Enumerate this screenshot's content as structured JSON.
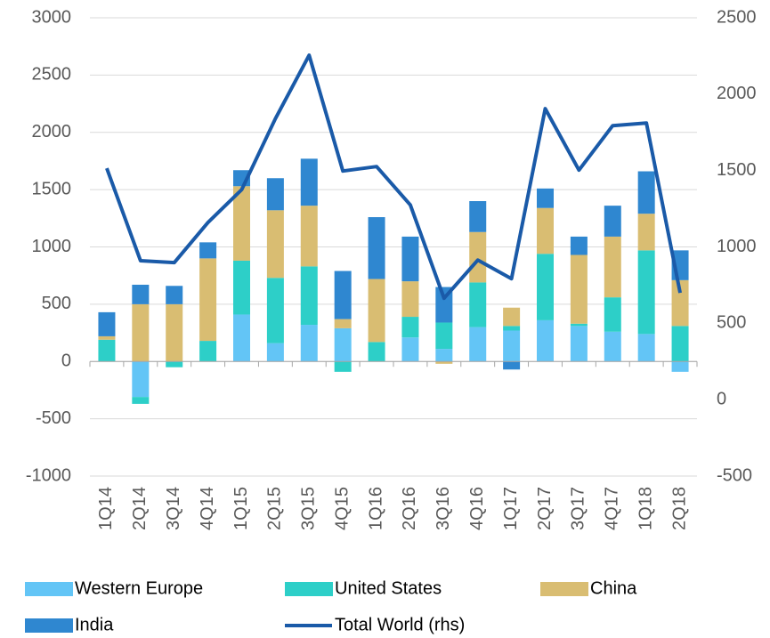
{
  "chart_data": {
    "type": "bar",
    "categories": [
      "1Q14",
      "2Q14",
      "3Q14",
      "4Q14",
      "1Q15",
      "2Q15",
      "3Q15",
      "4Q15",
      "1Q16",
      "2Q16",
      "3Q16",
      "4Q16",
      "1Q17",
      "2Q17",
      "3Q17",
      "4Q17",
      "1Q18",
      "2Q18"
    ],
    "series": [
      {
        "name": "Western Europe",
        "color": "#63c5f6",
        "values": [
          0,
          -310,
          0,
          0,
          410,
          160,
          320,
          290,
          0,
          210,
          110,
          300,
          270,
          360,
          310,
          260,
          240,
          -90
        ]
      },
      {
        "name": "United States",
        "color": "#2dcfc8",
        "values": [
          190,
          -60,
          -50,
          180,
          470,
          570,
          510,
          -90,
          170,
          180,
          230,
          390,
          40,
          580,
          20,
          300,
          730,
          310
        ]
      },
      {
        "name": "China",
        "color": "#d9bd72",
        "values": [
          30,
          500,
          500,
          720,
          650,
          590,
          530,
          80,
          550,
          310,
          -20,
          440,
          160,
          400,
          600,
          530,
          320,
          400
        ]
      },
      {
        "name": "India",
        "color": "#2f87d0",
        "values": [
          210,
          170,
          160,
          140,
          140,
          280,
          410,
          420,
          540,
          390,
          310,
          270,
          -70,
          170,
          160,
          270,
          370,
          260
        ]
      },
      {
        "name": "Total World (rhs)",
        "type": "line",
        "axis": "y2",
        "color": "#1a5aa8",
        "values": [
          1515,
          910,
          897,
          1160,
          1375,
          1840,
          2255,
          1497,
          1526,
          1275,
          664,
          914,
          792,
          1905,
          1503,
          1794,
          1811,
          699
        ]
      }
    ],
    "stacked": true,
    "ylim": [
      -1000,
      3000
    ],
    "yticks": [
      -1000,
      -500,
      0,
      500,
      1000,
      1500,
      2000,
      2500,
      3000
    ],
    "y2lim": [
      -500,
      2500
    ],
    "y2ticks": [
      -500,
      0,
      500,
      1000,
      1500,
      2000,
      2500
    ],
    "grid": true,
    "legend": "bottom"
  }
}
